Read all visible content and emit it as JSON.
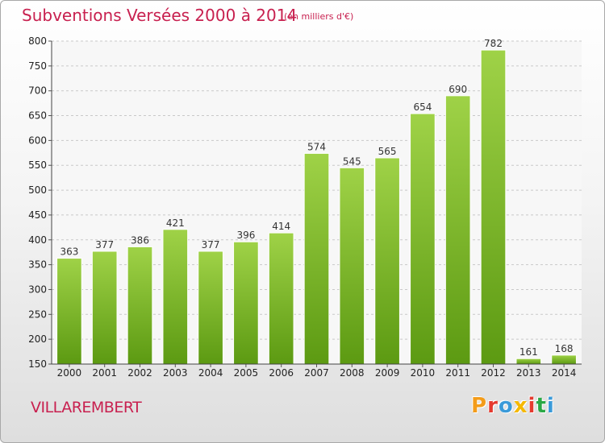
{
  "chart_data": {
    "type": "bar",
    "title": "Subventions Versées 2000 à 2014",
    "subtitle": "(en milliers d'€)",
    "xlabel": "",
    "ylabel": "",
    "categories": [
      "2000",
      "2001",
      "2002",
      "2003",
      "2004",
      "2005",
      "2006",
      "2007",
      "2008",
      "2009",
      "2010",
      "2011",
      "2012",
      "2013",
      "2014"
    ],
    "values": [
      363,
      377,
      386,
      421,
      377,
      396,
      414,
      574,
      545,
      565,
      654,
      690,
      782,
      161,
      168
    ],
    "ylim": [
      150,
      800
    ],
    "yticks": [
      150,
      200,
      250,
      300,
      350,
      400,
      450,
      500,
      550,
      600,
      650,
      700,
      750,
      800
    ],
    "grid": true,
    "legend": "none",
    "bar_color": "#7bb62a",
    "bar_color_light": "#9fd247",
    "bar_color_dark": "#5c9a12"
  },
  "commune": "VILLAREMBERT",
  "logo": {
    "text": "Proxiti",
    "letters": [
      "P",
      "r",
      "o",
      "x",
      "i",
      "t",
      "i"
    ],
    "colors": [
      "#f39c1a",
      "#e53a2f",
      "#3a9ad9",
      "#f5b800",
      "#e53a2f",
      "#2aa845",
      "#3a9ad9"
    ]
  }
}
